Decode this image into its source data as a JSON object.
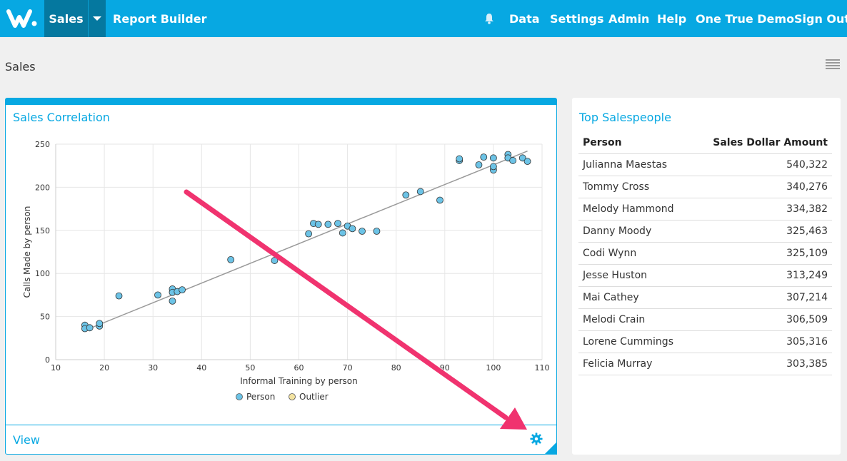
{
  "nav": {
    "logo": "logo",
    "sales": "Sales",
    "report_builder": "Report Builder",
    "links": [
      "Data",
      "Settings",
      "Admin",
      "Help",
      "One True Demo",
      "Sign Out"
    ]
  },
  "page": {
    "title": "Sales"
  },
  "chart_card": {
    "title": "Sales Correlation",
    "footer_link": "View"
  },
  "chart_data": {
    "type": "scatter",
    "xlabel": "Informal Training by person",
    "ylabel": "Calls Made by person",
    "xlim": [
      10,
      110
    ],
    "ylim": [
      0,
      250
    ],
    "xticks": [
      10,
      20,
      30,
      40,
      50,
      60,
      70,
      80,
      90,
      100,
      110
    ],
    "yticks": [
      0,
      50,
      100,
      150,
      200,
      250
    ],
    "grid": true,
    "legend_position": "bottom",
    "legend": [
      {
        "name": "Person",
        "color": "#6cc3e6"
      },
      {
        "name": "Outlier",
        "color": "#f3e3a1"
      }
    ],
    "series": [
      {
        "name": "Person",
        "color": "#6cc3e6",
        "points": [
          [
            16,
            40
          ],
          [
            16,
            36
          ],
          [
            17,
            37
          ],
          [
            19,
            39
          ],
          [
            19,
            42
          ],
          [
            23,
            74
          ],
          [
            31,
            75
          ],
          [
            34,
            82
          ],
          [
            34,
            78
          ],
          [
            34,
            68
          ],
          [
            35,
            79
          ],
          [
            36,
            81
          ],
          [
            46,
            116
          ],
          [
            55,
            115
          ],
          [
            62,
            146
          ],
          [
            63,
            158
          ],
          [
            64,
            157
          ],
          [
            66,
            157
          ],
          [
            68,
            158
          ],
          [
            69,
            147
          ],
          [
            70,
            155
          ],
          [
            71,
            152
          ],
          [
            73,
            149
          ],
          [
            76,
            149
          ],
          [
            82,
            191
          ],
          [
            85,
            195
          ],
          [
            89,
            185
          ],
          [
            93,
            231
          ],
          [
            93,
            233
          ],
          [
            97,
            226
          ],
          [
            98,
            235
          ],
          [
            100,
            234
          ],
          [
            100,
            220
          ],
          [
            100,
            224
          ],
          [
            103,
            238
          ],
          [
            103,
            234
          ],
          [
            104,
            231
          ],
          [
            106,
            234
          ],
          [
            107,
            230
          ]
        ]
      }
    ],
    "trendline": {
      "from": [
        16,
        34
      ],
      "to": [
        107,
        242
      ],
      "color": "#999999"
    }
  },
  "table_card": {
    "title": "Top Salespeople",
    "columns": [
      "Person",
      "Sales Dollar Amount"
    ],
    "rows": [
      [
        "Julianna Maestas",
        "540,322"
      ],
      [
        "Tommy Cross",
        "340,276"
      ],
      [
        "Melody Hammond",
        "334,382"
      ],
      [
        "Danny Moody",
        "325,463"
      ],
      [
        "Codi Wynn",
        "325,109"
      ],
      [
        "Jesse Huston",
        "313,249"
      ],
      [
        "Mai Cathey",
        "307,214"
      ],
      [
        "Melodi Crain",
        "306,509"
      ],
      [
        "Lorene Cummings",
        "305,316"
      ],
      [
        "Felicia Murray",
        "303,385"
      ]
    ]
  },
  "colors": {
    "brand": "#07a8e2",
    "brand_dark": "#05789f",
    "annotation": "#f0336f"
  }
}
